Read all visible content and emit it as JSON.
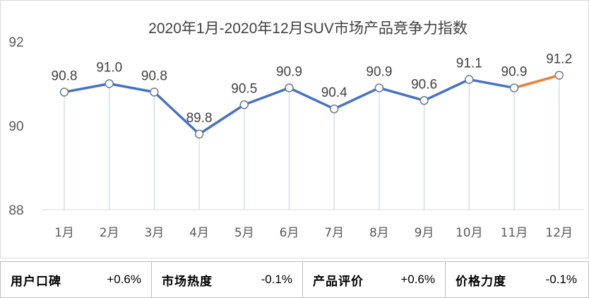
{
  "chart_data": {
    "type": "line",
    "title": "2020年1月-2020年12月SUV市场产品竞争力指数",
    "categories": [
      "1月",
      "2月",
      "3月",
      "4月",
      "5月",
      "6月",
      "7月",
      "8月",
      "9月",
      "10月",
      "11月",
      "12月"
    ],
    "values": [
      90.8,
      91.0,
      90.8,
      89.8,
      90.5,
      90.9,
      90.4,
      90.9,
      90.6,
      91.1,
      90.9,
      91.2
    ],
    "data_labels": [
      "90.8",
      "91.0",
      "90.8",
      "89.8",
      "90.5",
      "90.9",
      "90.4",
      "90.9",
      "90.6",
      "91.1",
      "90.9",
      "91.2"
    ],
    "ylim": [
      88,
      92
    ],
    "yticks": [
      "92",
      "90",
      "88"
    ],
    "grid": false,
    "line_color": "#4472c4",
    "highlight_color": "#ed7d31",
    "highlight_segment_from_index": 10
  },
  "metrics": [
    {
      "label": "用户口碑",
      "value": "+0.6%"
    },
    {
      "label": "市场热度",
      "value": "-0.1%"
    },
    {
      "label": "产品评价",
      "value": "+0.6%"
    },
    {
      "label": "价格力度",
      "value": "-0.1%"
    }
  ]
}
